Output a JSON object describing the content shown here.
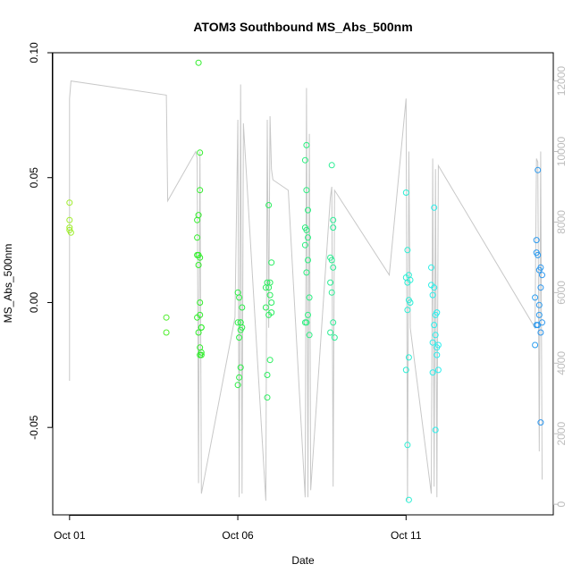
{
  "chart_data": {
    "type": "scatter",
    "title": "ATOM3 Southbound MS_Abs_500nm",
    "xlabel": "Date",
    "ylabel": "MS_Abs_500nm",
    "xlim": [
      "2016-09-30T12:00",
      "2016-10-15T09:00"
    ],
    "ylim": [
      -0.085,
      0.1
    ],
    "y2lim": [
      -300,
      12800
    ],
    "x_ticks": [
      {
        "label": "Oct 01",
        "value": "2016-10-01T00:00"
      },
      {
        "label": "Oct 06",
        "value": "2016-10-06T00:00"
      },
      {
        "label": "Oct 11",
        "value": "2016-10-11T00:00"
      }
    ],
    "y_ticks": [
      {
        "label": "-0.05",
        "value": -0.05
      },
      {
        "label": "0.00",
        "value": 0.0
      },
      {
        "label": "0.05",
        "value": 0.05
      },
      {
        "label": "0.10",
        "value": 0.1
      }
    ],
    "y2_ticks": [
      {
        "label": "0",
        "value": 0
      },
      {
        "label": "2000",
        "value": 2000
      },
      {
        "label": "4000",
        "value": 4000
      },
      {
        "label": "6000",
        "value": 6000
      },
      {
        "label": "8000",
        "value": 8000
      },
      {
        "label": "10000",
        "value": 10000
      },
      {
        "label": "12000",
        "value": 12000
      }
    ],
    "grid": false,
    "point_color_scale": "time gradient from yellow-green to blue",
    "series": [
      {
        "kind": "points",
        "x": [
          "2016-10-01T00:00",
          "2016-10-01T00:00",
          "2016-10-01T00:00",
          "2016-10-01T00:00",
          "2016-10-01T01:00",
          "2016-10-03T21:00",
          "2016-10-03T21:00",
          "2016-10-04T19:00",
          "2016-10-04T19:00",
          "2016-10-04T19:00",
          "2016-10-04T19:00",
          "2016-10-04T20:00",
          "2016-10-04T20:00",
          "2016-10-04T20:00",
          "2016-10-04T20:00",
          "2016-10-04T20:00",
          "2016-10-04T21:00",
          "2016-10-04T21:00",
          "2016-10-04T21:00",
          "2016-10-04T21:00",
          "2016-10-04T21:00",
          "2016-10-04T21:00",
          "2016-10-04T21:00",
          "2016-10-04T22:00",
          "2016-10-04T22:00",
          "2016-10-04T22:00",
          "2016-10-04T22:00",
          "2016-10-06T00:00",
          "2016-10-06T00:00",
          "2016-10-06T00:00",
          "2016-10-06T01:00",
          "2016-10-06T01:00",
          "2016-10-06T01:00",
          "2016-10-06T02:00",
          "2016-10-06T02:00",
          "2016-10-06T02:00",
          "2016-10-06T02:00",
          "2016-10-06T03:00",
          "2016-10-06T03:00",
          "2016-10-06T20:00",
          "2016-10-06T20:00",
          "2016-10-06T21:00",
          "2016-10-06T21:00",
          "2016-10-06T21:00",
          "2016-10-06T22:00",
          "2016-10-06T22:00",
          "2016-10-06T22:00",
          "2016-10-06T23:00",
          "2016-10-06T23:00",
          "2016-10-06T23:00",
          "2016-10-07T00:00",
          "2016-10-07T00:00",
          "2016-10-07T00:00",
          "2016-10-08T00:00",
          "2016-10-08T00:00",
          "2016-10-08T00:00",
          "2016-10-08T00:00",
          "2016-10-08T01:00",
          "2016-10-08T01:00",
          "2016-10-08T01:00",
          "2016-10-08T01:00",
          "2016-10-08T01:00",
          "2016-10-08T02:00",
          "2016-10-08T02:00",
          "2016-10-08T02:00",
          "2016-10-08T02:00",
          "2016-10-08T03:00",
          "2016-10-08T03:00",
          "2016-10-08T18:00",
          "2016-10-08T18:00",
          "2016-10-08T18:00",
          "2016-10-08T19:00",
          "2016-10-08T19:00",
          "2016-10-08T19:00",
          "2016-10-08T20:00",
          "2016-10-08T20:00",
          "2016-10-08T20:00",
          "2016-10-08T20:00",
          "2016-10-08T21:00",
          "2016-10-11T00:00",
          "2016-10-11T00:00",
          "2016-10-11T00:00",
          "2016-10-11T01:00",
          "2016-10-11T01:00",
          "2016-10-11T01:00",
          "2016-10-11T01:00",
          "2016-10-11T02:00",
          "2016-10-11T02:00",
          "2016-10-11T02:00",
          "2016-10-11T02:00",
          "2016-10-11T03:00",
          "2016-10-11T03:00",
          "2016-10-11T18:00",
          "2016-10-11T18:00",
          "2016-10-11T19:00",
          "2016-10-11T19:00",
          "2016-10-11T19:00",
          "2016-10-11T20:00",
          "2016-10-11T20:00",
          "2016-10-11T20:00",
          "2016-10-11T21:00",
          "2016-10-11T21:00",
          "2016-10-11T21:00",
          "2016-10-11T22:00",
          "2016-10-11T22:00",
          "2016-10-11T22:00",
          "2016-10-11T23:00",
          "2016-10-11T23:00",
          "2016-10-14T20:00",
          "2016-10-14T20:00",
          "2016-10-14T21:00",
          "2016-10-14T21:00",
          "2016-10-14T21:00",
          "2016-10-14T22:00",
          "2016-10-14T22:00",
          "2016-10-14T22:00",
          "2016-10-14T23:00",
          "2016-10-14T23:00",
          "2016-10-14T23:00",
          "2016-10-15T00:00",
          "2016-10-15T00:00",
          "2016-10-15T00:00",
          "2016-10-15T00:00",
          "2016-10-15T01:00",
          "2016-10-15T01:00"
        ],
        "y": [
          0.04,
          0.033,
          0.03,
          0.029,
          0.028,
          -0.006,
          -0.012,
          0.033,
          0.026,
          0.019,
          -0.006,
          0.096,
          0.035,
          0.019,
          0.015,
          -0.012,
          0.06,
          0.045,
          0.018,
          0.0,
          -0.005,
          -0.018,
          -0.021,
          -0.01,
          -0.01,
          -0.02,
          -0.021,
          0.004,
          -0.008,
          -0.033,
          0.002,
          -0.014,
          -0.03,
          -0.008,
          -0.011,
          -0.026,
          -0.008,
          -0.002,
          -0.01,
          0.006,
          -0.002,
          -0.038,
          0.008,
          -0.029,
          0.006,
          -0.005,
          0.039,
          0.008,
          -0.023,
          0.003,
          0.016,
          -0.004,
          0.0,
          0.057,
          0.03,
          0.023,
          -0.008,
          0.063,
          0.045,
          0.029,
          0.012,
          -0.008,
          0.037,
          0.026,
          0.017,
          -0.005,
          0.002,
          -0.013,
          0.018,
          0.008,
          -0.012,
          0.055,
          0.017,
          0.004,
          0.033,
          0.03,
          0.014,
          -0.008,
          -0.014,
          0.044,
          0.01,
          -0.027,
          0.021,
          0.008,
          -0.003,
          -0.057,
          0.011,
          0.001,
          -0.022,
          -0.079,
          0.009,
          0.0,
          0.014,
          0.007,
          0.003,
          -0.016,
          -0.028,
          0.038,
          0.006,
          -0.009,
          -0.005,
          -0.013,
          -0.051,
          -0.004,
          -0.018,
          -0.021,
          -0.017,
          -0.027,
          0.002,
          -0.017,
          0.025,
          0.02,
          -0.009,
          0.053,
          0.019,
          -0.009,
          -0.001,
          -0.005,
          0.013,
          0.014,
          0.006,
          -0.012,
          -0.048,
          0.011,
          -0.008
        ]
      },
      {
        "kind": "line",
        "axis": "y2",
        "name": "",
        "x": [
          "2016-10-01T00:00",
          "2016-10-01T00:00",
          "2016-10-01T01:00",
          "2016-10-03T21:00",
          "2016-10-03T22:00",
          "2016-10-04T18:00",
          "2016-10-04T19:00",
          "2016-10-04T20:00",
          "2016-10-04T21:00",
          "2016-10-04T22:00",
          "2016-10-05T22:00",
          "2016-10-06T00:00",
          "2016-10-06T01:00",
          "2016-10-06T02:00",
          "2016-10-06T03:00",
          "2016-10-06T04:00",
          "2016-10-06T20:00",
          "2016-10-06T21:00",
          "2016-10-06T22:00",
          "2016-10-06T23:00",
          "2016-10-07T00:00",
          "2016-10-07T01:00",
          "2016-10-07T12:00",
          "2016-10-08T00:00",
          "2016-10-08T01:00",
          "2016-10-08T02:00",
          "2016-10-08T03:00",
          "2016-10-08T04:00",
          "2016-10-08T18:00",
          "2016-10-08T19:00",
          "2016-10-08T20:00",
          "2016-10-08T21:00",
          "2016-10-10T12:00",
          "2016-10-11T00:00",
          "2016-10-11T01:00",
          "2016-10-11T02:00",
          "2016-10-11T03:00",
          "2016-10-11T18:00",
          "2016-10-11T19:00",
          "2016-10-11T20:00",
          "2016-10-11T21:00",
          "2016-10-11T22:00",
          "2016-10-11T23:00",
          "2016-10-14T20:00",
          "2016-10-14T21:00",
          "2016-10-14T22:00",
          "2016-10-14T23:00",
          "2016-10-15T00:00",
          "2016-10-15T01:00"
        ],
        "y": [
          3500,
          11500,
          12000,
          11600,
          8600,
          10000,
          9800,
          600,
          10000,
          300,
          5300,
          10900,
          200,
          11900,
          300,
          10800,
          100,
          10900,
          5000,
          11000,
          9500,
          9200,
          8900,
          200,
          11800,
          200,
          10500,
          400,
          8700,
          9000,
          500,
          8900,
          6500,
          11500,
          100,
          10000,
          5000,
          300,
          9800,
          500,
          9500,
          200,
          9600,
          5000,
          9800,
          9700,
          1500,
          10000,
          700
        ]
      }
    ]
  }
}
